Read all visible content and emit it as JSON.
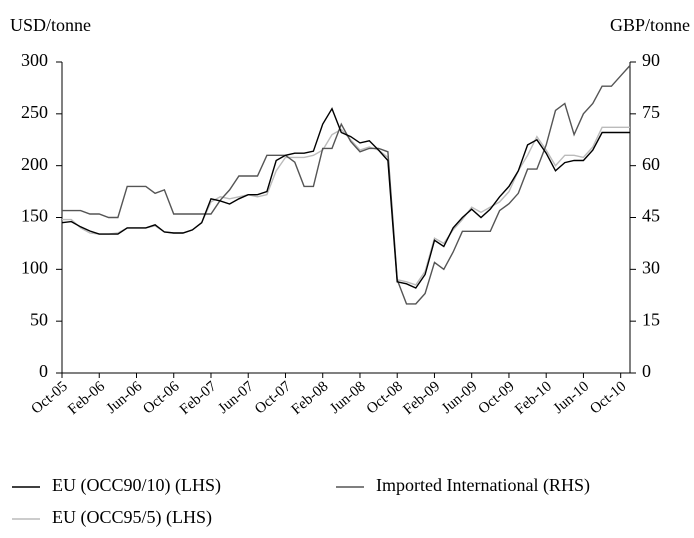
{
  "chart_data": {
    "type": "line",
    "y_label": "USD/tonne",
    "y2_label": "GBP/tonne",
    "categories": [
      "Oct-05",
      null,
      null,
      null,
      "Feb-06",
      null,
      null,
      null,
      "Jun-06",
      null,
      null,
      null,
      "Oct-06",
      null,
      null,
      null,
      "Feb-07",
      null,
      null,
      null,
      "Jun-07",
      null,
      null,
      null,
      "Oct-07",
      null,
      null,
      null,
      "Feb-08",
      null,
      null,
      null,
      "Jun-08",
      null,
      null,
      null,
      "Oct-08",
      null,
      null,
      null,
      "Feb-09",
      null,
      null,
      null,
      "Jun-09",
      null,
      null,
      null,
      "Oct-09",
      null,
      null,
      null,
      "Feb-10",
      null,
      null,
      null,
      "Jun-10",
      null,
      null,
      null,
      "Oct-10",
      null
    ],
    "series": [
      {
        "name": "EU (OCC90/10) (LHS)",
        "color": "#000000",
        "axis": "y",
        "values": [
          145,
          146,
          141,
          137,
          134,
          134,
          134,
          140,
          140,
          140,
          143,
          136,
          135,
          135,
          138,
          145,
          168,
          166,
          163,
          168,
          172,
          172,
          175,
          205,
          210,
          212,
          212,
          214,
          240,
          255,
          232,
          228,
          222,
          224,
          215,
          205,
          88,
          86,
          82,
          95,
          128,
          122,
          140,
          150,
          158,
          150,
          158,
          170,
          180,
          195,
          220,
          225,
          212,
          195,
          203,
          205,
          205,
          215,
          232,
          232,
          232,
          232
        ]
      },
      {
        "name": "Imported International (RHS)",
        "color": "#555555",
        "axis": "y2",
        "values": [
          47,
          47,
          47,
          46,
          46,
          45,
          45,
          54,
          54,
          54,
          52,
          53,
          46,
          46,
          46,
          46,
          46,
          50,
          53,
          57,
          57,
          57,
          63,
          63,
          63,
          61,
          54,
          54,
          65,
          65,
          72,
          67,
          64,
          65,
          65,
          64,
          27,
          20,
          20,
          23,
          32,
          30,
          35,
          41,
          41,
          41,
          41,
          47,
          49,
          52,
          59,
          59,
          66,
          76,
          78,
          69,
          75,
          78,
          83,
          83,
          86,
          89
        ]
      },
      {
        "name": "EU (OCC95/5) (LHS)",
        "color": "#bbbbbb",
        "axis": "y",
        "values": [
          148,
          148,
          140,
          135,
          134,
          134,
          135,
          140,
          140,
          140,
          142,
          136,
          135,
          135,
          138,
          145,
          165,
          170,
          168,
          170,
          172,
          170,
          172,
          195,
          208,
          208,
          208,
          210,
          215,
          230,
          235,
          225,
          215,
          218,
          215,
          208,
          90,
          88,
          85,
          98,
          130,
          125,
          138,
          148,
          160,
          155,
          160,
          165,
          175,
          195,
          210,
          228,
          215,
          200,
          210,
          210,
          208,
          218,
          237,
          237,
          237,
          237
        ]
      }
    ],
    "ylim": [
      0,
      300
    ],
    "yticks": [
      0,
      50,
      100,
      150,
      200,
      250,
      300
    ],
    "y2lim": [
      0,
      90
    ],
    "y2ticks": [
      0,
      15,
      30,
      45,
      60,
      75,
      90
    ]
  }
}
